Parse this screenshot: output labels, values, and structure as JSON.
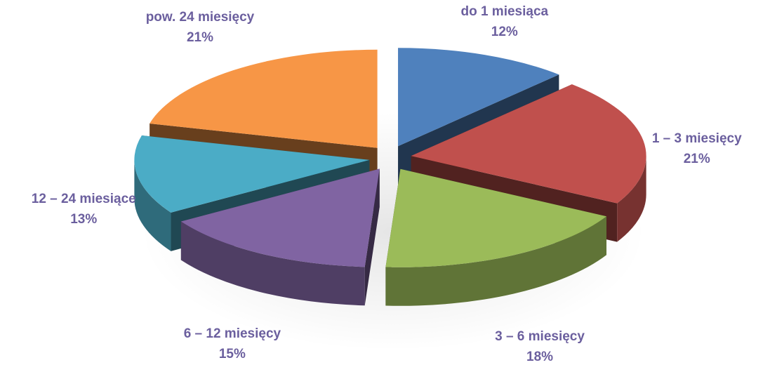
{
  "chart_data": {
    "type": "pie",
    "title": "",
    "categories": [
      "do 1 miesiąca",
      "1 – 3 miesięcy",
      "3 – 6 miesięcy",
      "6 – 12 miesięcy",
      "12 – 24 miesiące",
      "pow. 24 miesięcy"
    ],
    "values": [
      12,
      21,
      18,
      15,
      13,
      21
    ],
    "value_labels": [
      "12%",
      "21%",
      "18%",
      "15%",
      "13%",
      "21%"
    ],
    "colors": [
      "#4f81bd",
      "#c0504d",
      "#9bbb59",
      "#8064a2",
      "#4bacc6",
      "#f79646"
    ],
    "style": "3d-exploded",
    "legend": "none"
  }
}
